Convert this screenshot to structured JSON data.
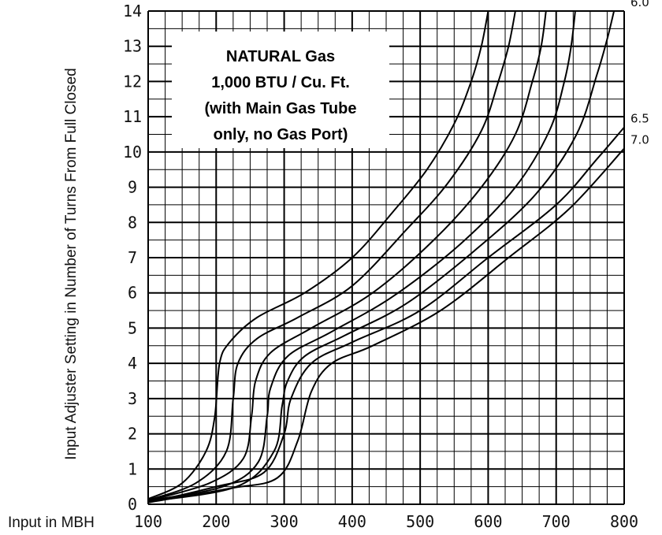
{
  "chart_data": {
    "type": "line",
    "title": "",
    "xlabel": "Input in MBH",
    "ylabel": "Input Adjuster Setting in Number of Turns From Full Closed",
    "xlim": [
      100,
      800
    ],
    "ylim": [
      0,
      14
    ],
    "x_ticks": [
      "100",
      "200",
      "300",
      "400",
      "500",
      "600",
      "700",
      "800"
    ],
    "y_ticks": [
      "0",
      "1",
      "2",
      "3",
      "4",
      "5",
      "6",
      "7",
      "8",
      "9",
      "10",
      "11",
      "12",
      "13",
      "14"
    ],
    "grid": true,
    "annotation": [
      "NATURAL Gas",
      "1,000 BTU / Cu. Ft.",
      "(with Main Gas Tube",
      "only, no Gas Port)"
    ],
    "series": [
      {
        "name": "",
        "points": [
          [
            100,
            0.15
          ],
          [
            150,
            0.6
          ],
          [
            185,
            1.5
          ],
          [
            198,
            2.5
          ],
          [
            205,
            4.0
          ],
          [
            220,
            4.6
          ],
          [
            260,
            5.3
          ],
          [
            330,
            6.0
          ],
          [
            400,
            7.0
          ],
          [
            460,
            8.3
          ],
          [
            510,
            9.5
          ],
          [
            550,
            10.8
          ],
          [
            575,
            12.0
          ],
          [
            590,
            13.0
          ],
          [
            600,
            14.0
          ]
        ]
      },
      {
        "name": "",
        "points": [
          [
            100,
            0.12
          ],
          [
            170,
            0.6
          ],
          [
            215,
            1.5
          ],
          [
            225,
            3.0
          ],
          [
            232,
            4.0
          ],
          [
            260,
            4.7
          ],
          [
            320,
            5.3
          ],
          [
            400,
            6.2
          ],
          [
            480,
            7.8
          ],
          [
            540,
            9.1
          ],
          [
            590,
            10.6
          ],
          [
            615,
            12.0
          ],
          [
            630,
            13.0
          ],
          [
            640,
            14.0
          ]
        ]
      },
      {
        "name": "",
        "points": [
          [
            100,
            0.1
          ],
          [
            190,
            0.6
          ],
          [
            240,
            1.3
          ],
          [
            252,
            2.5
          ],
          [
            258,
            3.5
          ],
          [
            280,
            4.3
          ],
          [
            340,
            5.0
          ],
          [
            430,
            6.0
          ],
          [
            520,
            7.5
          ],
          [
            590,
            9.0
          ],
          [
            640,
            10.5
          ],
          [
            665,
            12.0
          ],
          [
            678,
            13.0
          ],
          [
            685,
            14.0
          ]
        ]
      },
      {
        "name": "",
        "points": [
          [
            100,
            0.1
          ],
          [
            210,
            0.5
          ],
          [
            262,
            1.2
          ],
          [
            275,
            2.5
          ],
          [
            280,
            3.3
          ],
          [
            305,
            4.2
          ],
          [
            370,
            4.9
          ],
          [
            460,
            5.9
          ],
          [
            560,
            7.4
          ],
          [
            640,
            9.0
          ],
          [
            690,
            10.6
          ],
          [
            712,
            12.0
          ],
          [
            722,
            13.0
          ],
          [
            728,
            14.0
          ]
        ]
      },
      {
        "name": "6.0",
        "points": [
          [
            100,
            0.08
          ],
          [
            230,
            0.5
          ],
          [
            285,
            1.5
          ],
          [
            297,
            2.8
          ],
          [
            305,
            3.5
          ],
          [
            330,
            4.2
          ],
          [
            390,
            4.8
          ],
          [
            480,
            5.7
          ],
          [
            580,
            7.2
          ],
          [
            670,
            8.8
          ],
          [
            730,
            10.5
          ],
          [
            760,
            12.2
          ],
          [
            775,
            13.2
          ],
          [
            785,
            14.0
          ]
        ]
      },
      {
        "name": "6.5",
        "points": [
          [
            100,
            0.05
          ],
          [
            200,
            0.5
          ],
          [
            270,
            0.9
          ],
          [
            300,
            2.0
          ],
          [
            310,
            3.0
          ],
          [
            340,
            4.0
          ],
          [
            400,
            4.6
          ],
          [
            500,
            5.5
          ],
          [
            600,
            7.0
          ],
          [
            700,
            8.5
          ],
          [
            760,
            9.8
          ],
          [
            800,
            10.7
          ]
        ]
      },
      {
        "name": "7.0",
        "points": [
          [
            100,
            0.05
          ],
          [
            220,
            0.45
          ],
          [
            290,
            0.75
          ],
          [
            320,
            1.8
          ],
          [
            340,
            3.2
          ],
          [
            370,
            4.0
          ],
          [
            430,
            4.5
          ],
          [
            530,
            5.5
          ],
          [
            630,
            7.0
          ],
          [
            720,
            8.4
          ],
          [
            800,
            10.1
          ]
        ]
      }
    ]
  }
}
